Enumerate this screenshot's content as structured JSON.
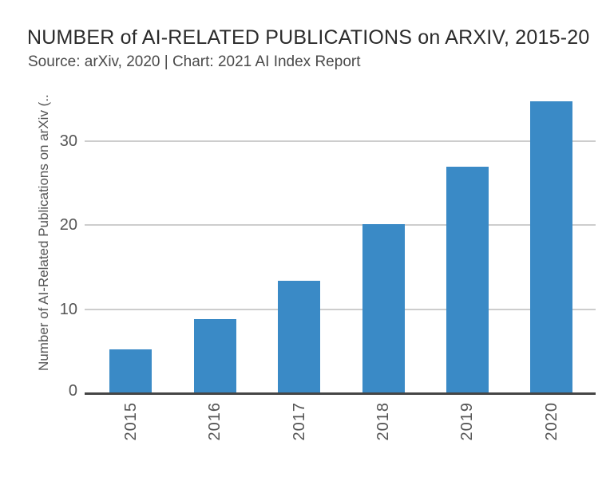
{
  "header": {
    "title": "NUMBER of AI-RELATED PUBLICATIONS on ARXIV, 2015-20",
    "subtitle": "Source: arXiv, 2020 | Chart: 2021 AI Index Report"
  },
  "chart_data": {
    "type": "bar",
    "title": "NUMBER of AI-RELATED PUBLICATIONS on ARXIV, 2015-20",
    "subtitle": "Source: arXiv, 2020 | Chart: 2021 AI Index Report",
    "categories": [
      "2015",
      "2016",
      "2017",
      "2018",
      "2019",
      "2020"
    ],
    "values": [
      5.2,
      8.8,
      13.4,
      20.1,
      27.0,
      34.7
    ],
    "xlabel": "",
    "ylabel": "Number of AI-Related Publications on arXiv (..",
    "yticks": [
      0,
      10,
      20,
      30
    ],
    "ylim": [
      0,
      37.3
    ],
    "grid": true,
    "legend": "none",
    "x_tick_rotation_deg": 90,
    "bar_color": "#3A8AC6"
  },
  "colors": {
    "bar": "#3A8AC6",
    "gridline": "#CDCDCD",
    "axis_line": "#454545",
    "tick_text": "#555555",
    "axis_title_text": "#555555",
    "title_text": "#2B2B2B",
    "subtitle_text": "#4A4A4A",
    "background": "#FFFFFF"
  }
}
